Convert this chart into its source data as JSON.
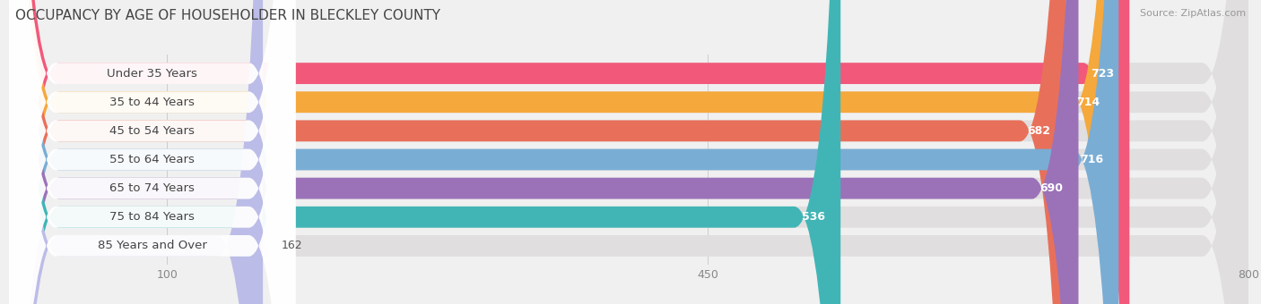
{
  "title": "OCCUPANCY BY AGE OF HOUSEHOLDER IN BLECKLEY COUNTY",
  "source": "Source: ZipAtlas.com",
  "categories": [
    "Under 35 Years",
    "35 to 44 Years",
    "45 to 54 Years",
    "55 to 64 Years",
    "65 to 74 Years",
    "75 to 84 Years",
    "85 Years and Over"
  ],
  "values": [
    723,
    714,
    682,
    716,
    690,
    536,
    162
  ],
  "bar_colors": [
    "#F2587A",
    "#F5A83B",
    "#E8705A",
    "#7AADD4",
    "#9B72B8",
    "#41B5B5",
    "#BCBCE8"
  ],
  "xlim_left": 0,
  "xlim_right": 800,
  "xticks": [
    100,
    450,
    800
  ],
  "background_color": "#f0f0f0",
  "bar_bg_color": "#e0dede",
  "title_fontsize": 11,
  "bar_label_fontsize": 9.5,
  "value_fontsize": 9,
  "tick_fontsize": 9,
  "bar_height": 0.74,
  "bar_gap": 1.0
}
